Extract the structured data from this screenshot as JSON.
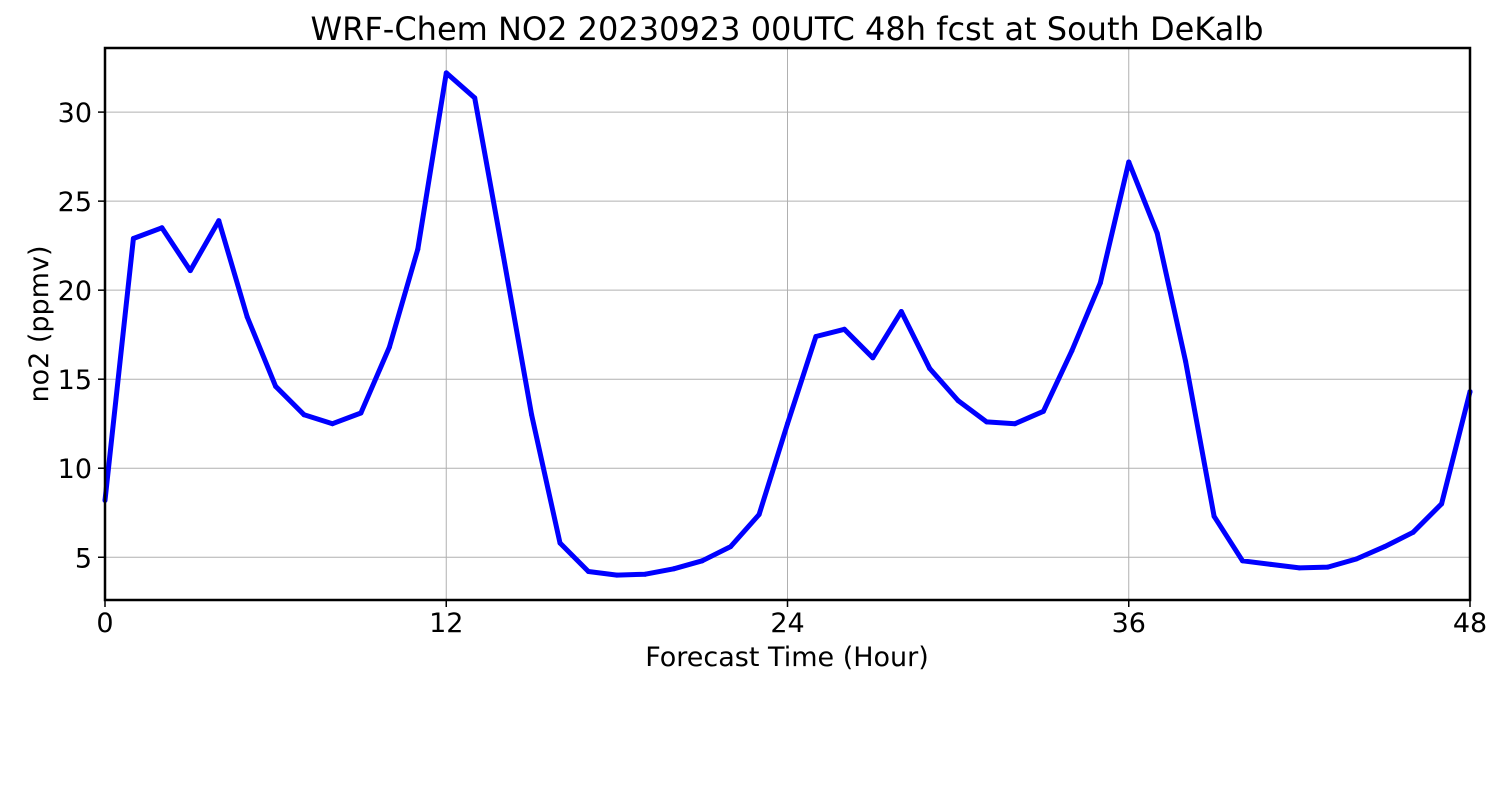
{
  "chart_data": {
    "type": "line",
    "title": "WRF-Chem NO2  20230923 00UTC 48h fcst at South DeKalb",
    "xlabel": "Forecast Time (Hour)",
    "ylabel": "no2  (ppmv)",
    "xlim": [
      0,
      48
    ],
    "ylim": [
      2.6,
      33.6
    ],
    "xticks": [
      0,
      12,
      24,
      36,
      48
    ],
    "yticks": [
      5,
      10,
      15,
      20,
      25,
      30
    ],
    "grid": true,
    "series": [
      {
        "color": "#0000ff",
        "x": [
          0,
          1,
          2,
          3,
          4,
          5,
          6,
          7,
          8,
          9,
          10,
          11,
          12,
          13,
          14,
          15,
          16,
          17,
          18,
          19,
          20,
          21,
          22,
          23,
          24,
          25,
          26,
          27,
          28,
          29,
          30,
          31,
          32,
          33,
          34,
          35,
          36,
          37,
          38,
          39,
          40,
          41,
          42,
          43,
          44,
          45,
          46,
          47,
          48
        ],
        "y": [
          8.2,
          22.9,
          23.5,
          21.1,
          23.9,
          18.5,
          14.6,
          13.0,
          12.5,
          13.1,
          16.8,
          22.3,
          32.2,
          30.8,
          22.0,
          13.0,
          5.8,
          4.2,
          4.0,
          4.05,
          4.35,
          4.8,
          5.6,
          7.4,
          12.5,
          17.4,
          17.8,
          16.2,
          18.8,
          15.6,
          13.8,
          12.6,
          12.5,
          13.2,
          16.6,
          20.4,
          27.2,
          23.2,
          16.0,
          7.3,
          4.8,
          4.6,
          4.4,
          4.45,
          4.9,
          5.6,
          6.4,
          8.0,
          14.3
        ]
      }
    ]
  }
}
